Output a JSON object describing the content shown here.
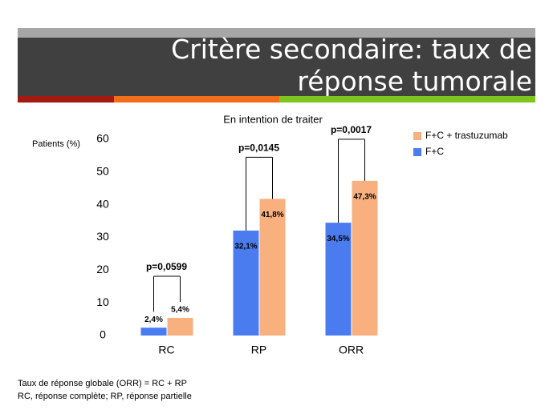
{
  "chart_data": {
    "type": "bar",
    "title": "Critère secondaire: taux de réponse tumorale",
    "subtitle": "En intention de traiter",
    "y_label": "Patients (%)",
    "categories": [
      "RC",
      "RP",
      "ORR"
    ],
    "series": [
      {
        "name": "F+C",
        "color": "#4a7cf0",
        "values": [
          2.4,
          32.1,
          34.5
        ],
        "value_labels": [
          "2,4%",
          "32,1%",
          "34,5%"
        ]
      },
      {
        "name": "F+C + trastuzumab",
        "color": "#f8b07e",
        "values": [
          5.4,
          41.8,
          47.3
        ],
        "value_labels": [
          "5,4%",
          "41,8%",
          "47,3%"
        ]
      }
    ],
    "p_values": [
      "p=0,0599",
      "p=0,0145",
      "p=0,0017"
    ],
    "ylim": [
      0,
      60
    ],
    "yticks": [
      0,
      10,
      20,
      30,
      40,
      50,
      60
    ],
    "grid": false,
    "legend": "top-right",
    "footnotes": [
      "Taux de réponse globale (ORR) = RC + RP",
      "RC, réponse complète; RP, réponse partielle"
    ]
  }
}
